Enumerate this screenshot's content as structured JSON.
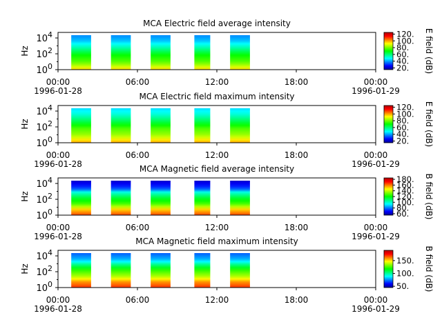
{
  "colors": {
    "colormap": [
      "#00008f",
      "#0000ff",
      "#0080ff",
      "#00ffff",
      "#00ff80",
      "#00ff00",
      "#80ff00",
      "#ffff00",
      "#ff8000",
      "#ff0000",
      "#b00000"
    ]
  },
  "chart_data": [
    {
      "type": "heatmap",
      "title": "MCA  Electric field average intensity",
      "ylabel": "Hz",
      "colorbar_label": "E field (dB)",
      "colorbar_ticks": [
        "20.",
        "40.",
        "60.",
        "80.",
        "100.",
        "120."
      ],
      "colorbar_range": [
        15,
        125
      ],
      "x_ticks": [
        "00:00",
        "06:00",
        "12:00",
        "18:00",
        "00:00"
      ],
      "x_dates": [
        "1996-01-28",
        "1996-01-29"
      ],
      "xlim_hours": [
        0,
        24
      ],
      "y_exponents": [
        "0",
        "2",
        "4"
      ],
      "ylim_log10_hz": [
        0,
        4.7
      ],
      "scale": "log",
      "segments_hours": [
        [
          1.0,
          2.5
        ],
        [
          4.0,
          5.5
        ],
        [
          7.0,
          8.5
        ],
        [
          10.3,
          11.5
        ],
        [
          13.0,
          14.5
        ]
      ],
      "profile_db": [
        [
          0,
          95
        ],
        [
          1,
          78
        ],
        [
          2,
          70
        ],
        [
          3,
          55
        ],
        [
          4,
          42
        ],
        [
          4.7,
          38
        ]
      ]
    },
    {
      "type": "heatmap",
      "title": "MCA  Electric field maximum intensity",
      "ylabel": "Hz",
      "colorbar_label": "E field (dB)",
      "colorbar_ticks": [
        "20.",
        "40.",
        "60.",
        "80.",
        "100.",
        "120."
      ],
      "colorbar_range": [
        15,
        125
      ],
      "x_ticks": [
        "00:00",
        "06:00",
        "12:00",
        "18:00",
        "00:00"
      ],
      "x_dates": [
        "1996-01-28",
        "1996-01-29"
      ],
      "xlim_hours": [
        0,
        24
      ],
      "y_exponents": [
        "0",
        "2",
        "4"
      ],
      "ylim_log10_hz": [
        0,
        4.7
      ],
      "scale": "log",
      "segments_hours": [
        [
          1.0,
          2.5
        ],
        [
          4.0,
          5.5
        ],
        [
          7.0,
          8.5
        ],
        [
          10.3,
          11.5
        ],
        [
          13.0,
          14.5
        ]
      ],
      "profile_db": [
        [
          0,
          100
        ],
        [
          1,
          84
        ],
        [
          2,
          76
        ],
        [
          3,
          62
        ],
        [
          4,
          50
        ],
        [
          4.7,
          45
        ]
      ]
    },
    {
      "type": "heatmap",
      "title": "MCA  Magnetic field average intensity",
      "ylabel": "Hz",
      "colorbar_label": "B field (dB)",
      "colorbar_ticks": [
        "60.",
        "80.",
        "100.",
        "120.",
        "140.",
        "160.",
        "180."
      ],
      "colorbar_range": [
        55,
        185
      ],
      "x_ticks": [
        "00:00",
        "06:00",
        "12:00",
        "18:00",
        "00:00"
      ],
      "x_dates": [
        "1996-01-28",
        "1996-01-29"
      ],
      "xlim_hours": [
        0,
        24
      ],
      "y_exponents": [
        "0",
        "2",
        "4"
      ],
      "ylim_log10_hz": [
        0,
        4.7
      ],
      "scale": "log",
      "segments_hours": [
        [
          1.0,
          2.5
        ],
        [
          4.0,
          5.5
        ],
        [
          7.0,
          8.5
        ],
        [
          10.3,
          11.5
        ],
        [
          13.0,
          14.5
        ]
      ],
      "profile_db": [
        [
          0,
          165
        ],
        [
          0.8,
          150
        ],
        [
          1.5,
          128
        ],
        [
          2.5,
          112
        ],
        [
          3.2,
          95
        ],
        [
          3.6,
          75
        ],
        [
          4.7,
          62
        ]
      ]
    },
    {
      "type": "heatmap",
      "title": "MCA  Magnetic field maximum intensity",
      "ylabel": "Hz",
      "colorbar_label": "B field (dB)",
      "colorbar_ticks": [
        "50.",
        "100.",
        "150."
      ],
      "colorbar_range": [
        45,
        190
      ],
      "x_ticks": [
        "00:00",
        "06:00",
        "12:00",
        "18:00",
        "00:00"
      ],
      "x_dates": [
        "1996-01-28",
        "1996-01-29"
      ],
      "xlim_hours": [
        0,
        24
      ],
      "y_exponents": [
        "0",
        "2",
        "4"
      ],
      "ylim_log10_hz": [
        0,
        4.7
      ],
      "scale": "log",
      "segments_hours": [
        [
          1.0,
          2.5
        ],
        [
          4.0,
          5.5
        ],
        [
          7.0,
          8.5
        ],
        [
          10.3,
          11.5
        ],
        [
          13.0,
          14.5
        ]
      ],
      "profile_db": [
        [
          0,
          170
        ],
        [
          0.8,
          158
        ],
        [
          1.5,
          138
        ],
        [
          2.5,
          120
        ],
        [
          3.2,
          100
        ],
        [
          3.7,
          82
        ],
        [
          4.7,
          70
        ]
      ]
    }
  ]
}
